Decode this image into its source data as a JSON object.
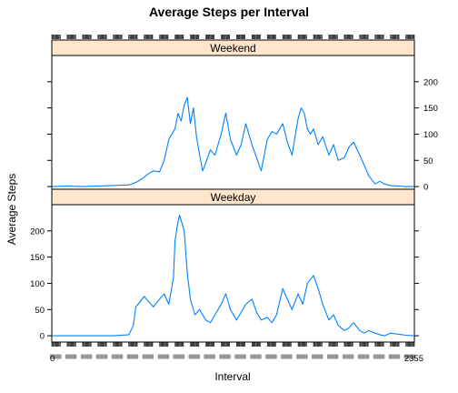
{
  "chart_data": {
    "type": "line",
    "title": "Average Steps per Interval",
    "xlabel": "Interval",
    "ylabel": "Average Steps",
    "xlim": [
      0,
      2355
    ],
    "ylim": [
      -12,
      250
    ],
    "yticks": [
      0,
      50,
      100,
      150,
      200
    ],
    "line_color": "#0080ff",
    "strip_color": "#ffe5cc",
    "grid": false,
    "panels": [
      {
        "name": "Weekend",
        "x": [
          0,
          100,
          200,
          300,
          400,
          500,
          530,
          560,
          600,
          630,
          660,
          700,
          730,
          760,
          800,
          820,
          840,
          860,
          880,
          900,
          920,
          940,
          960,
          980,
          1000,
          1030,
          1060,
          1100,
          1130,
          1160,
          1200,
          1230,
          1260,
          1300,
          1330,
          1360,
          1400,
          1430,
          1460,
          1500,
          1530,
          1560,
          1600,
          1620,
          1640,
          1660,
          1680,
          1700,
          1730,
          1760,
          1800,
          1830,
          1860,
          1900,
          1930,
          1960,
          2000,
          2030,
          2060,
          2100,
          2130,
          2160,
          2200,
          2300,
          2355
        ],
        "y": [
          0,
          1,
          0,
          1,
          2,
          3,
          6,
          10,
          18,
          25,
          30,
          28,
          50,
          90,
          110,
          140,
          125,
          155,
          170,
          120,
          150,
          95,
          60,
          30,
          45,
          70,
          60,
          100,
          140,
          90,
          60,
          80,
          120,
          80,
          55,
          30,
          90,
          105,
          100,
          120,
          85,
          60,
          130,
          150,
          140,
          110,
          100,
          110,
          80,
          95,
          60,
          80,
          50,
          55,
          75,
          85,
          60,
          40,
          20,
          5,
          10,
          5,
          2,
          0,
          0
        ]
      },
      {
        "name": "Weekday",
        "x": [
          0,
          100,
          200,
          300,
          400,
          500,
          530,
          545,
          560,
          600,
          630,
          660,
          700,
          730,
          760,
          790,
          800,
          815,
          830,
          845,
          860,
          880,
          900,
          930,
          960,
          1000,
          1030,
          1060,
          1100,
          1130,
          1160,
          1200,
          1230,
          1260,
          1300,
          1330,
          1360,
          1400,
          1430,
          1460,
          1500,
          1530,
          1560,
          1600,
          1630,
          1660,
          1700,
          1730,
          1760,
          1800,
          1830,
          1860,
          1900,
          1930,
          1960,
          2000,
          2030,
          2060,
          2100,
          2130,
          2160,
          2200,
          2300,
          2355
        ],
        "y": [
          0,
          0,
          0,
          0,
          0,
          2,
          20,
          55,
          60,
          75,
          65,
          55,
          70,
          80,
          60,
          110,
          180,
          210,
          230,
          215,
          200,
          120,
          70,
          40,
          50,
          30,
          25,
          40,
          60,
          80,
          50,
          30,
          45,
          60,
          70,
          45,
          30,
          35,
          25,
          40,
          90,
          70,
          50,
          80,
          60,
          100,
          115,
          90,
          60,
          30,
          40,
          20,
          10,
          15,
          25,
          10,
          5,
          10,
          5,
          2,
          0,
          5,
          1,
          0
        ]
      }
    ]
  }
}
